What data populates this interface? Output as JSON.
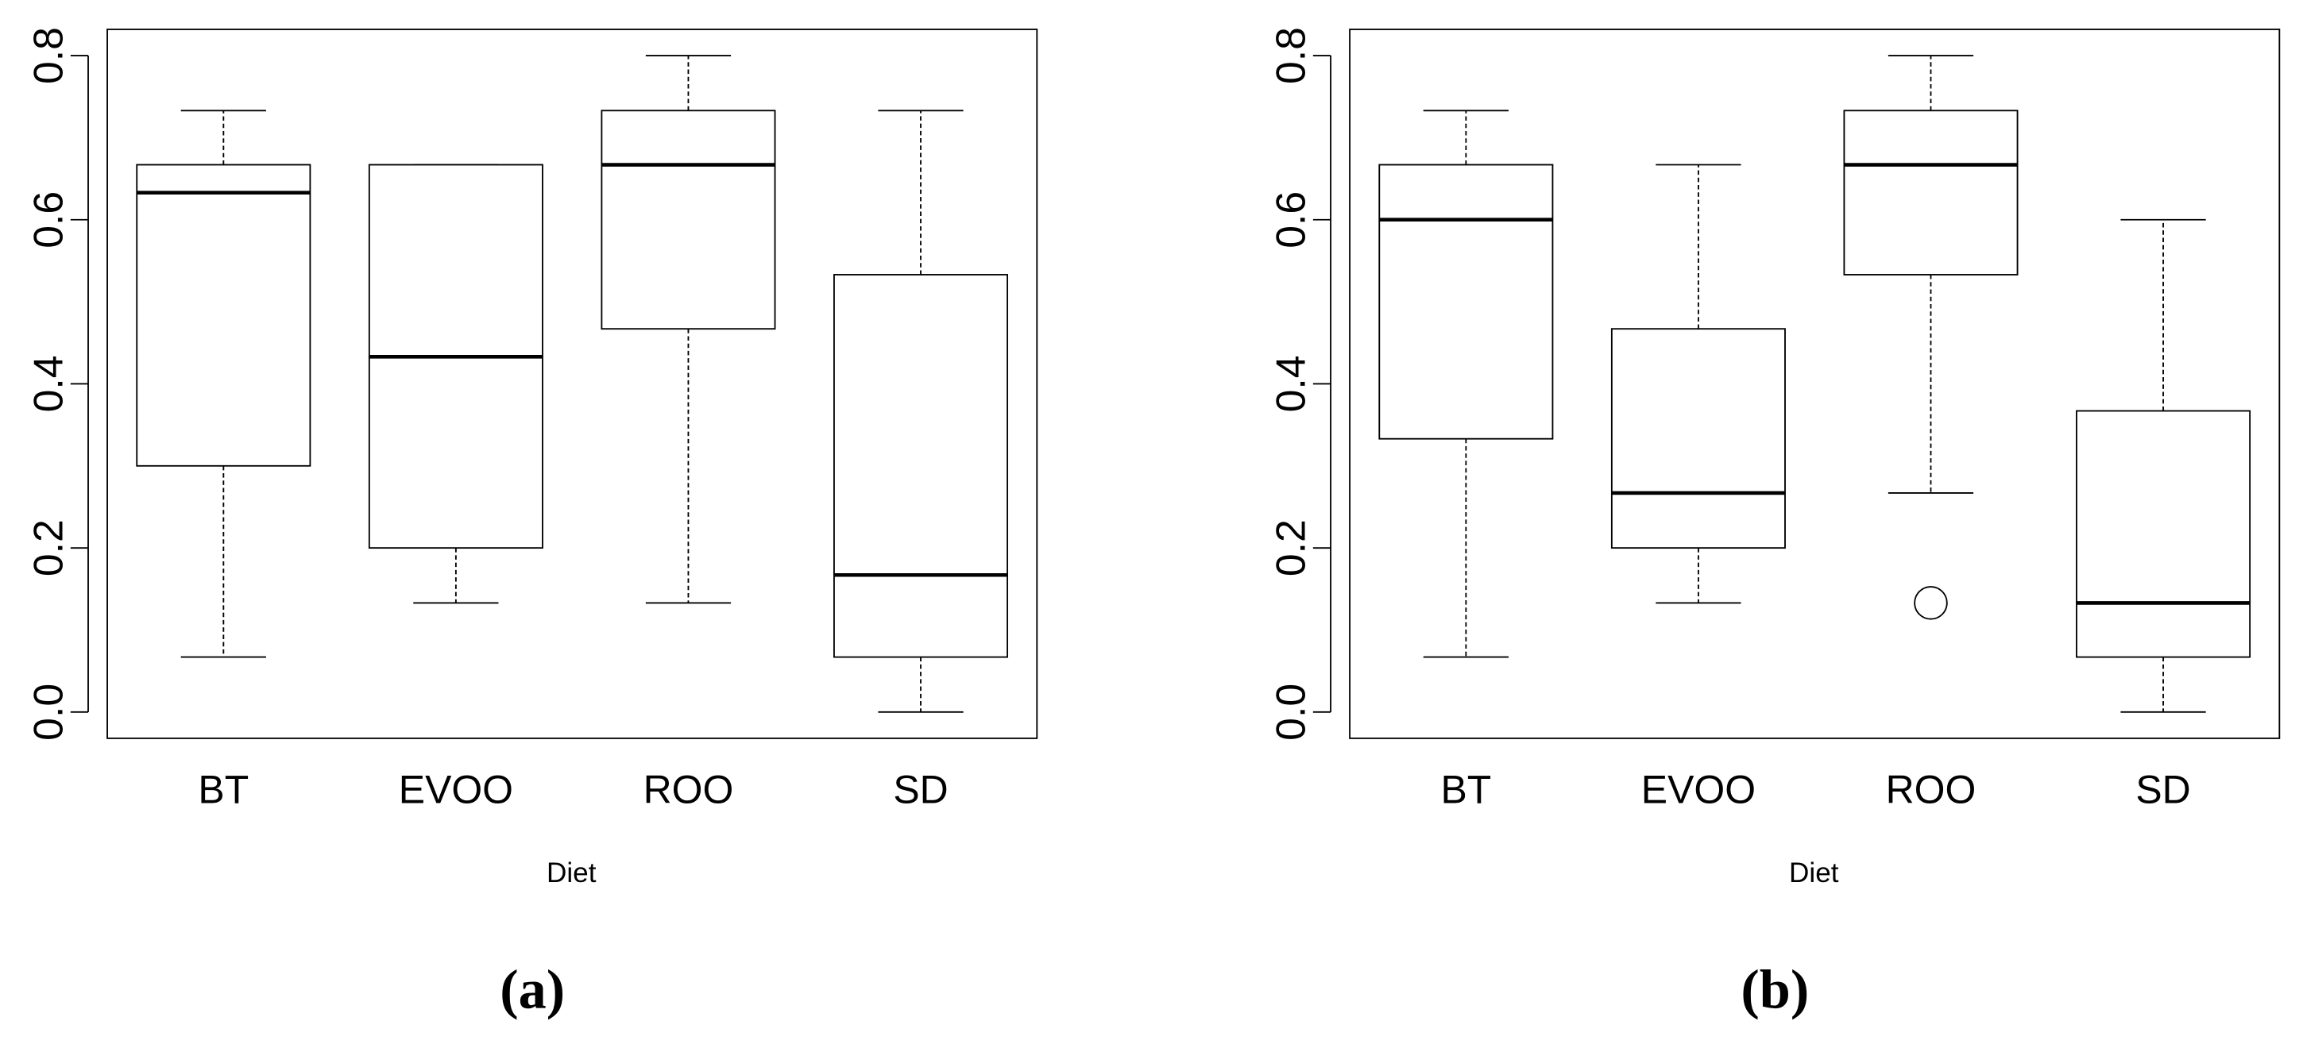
{
  "chart_data": [
    {
      "type": "box",
      "xlabel": "Diet",
      "panel_label": "(a)",
      "categories": [
        "BT",
        "EVOO",
        "ROO",
        "SD"
      ],
      "boxes": [
        {
          "low": 0.067,
          "q1": 0.3,
          "median": 0.633,
          "q3": 0.667,
          "high": 0.733
        },
        {
          "low": 0.133,
          "q1": 0.2,
          "median": 0.433,
          "q3": 0.667,
          "high": 0.667
        },
        {
          "low": 0.133,
          "q1": 0.467,
          "median": 0.667,
          "q3": 0.733,
          "high": 0.8
        },
        {
          "low": 0,
          "q1": 0.067,
          "median": 0.167,
          "q3": 0.533,
          "high": 0.733
        }
      ],
      "ylim": [
        -0.032,
        0.832
      ],
      "yticks": [
        {
          "value": 0,
          "label": "0.0"
        },
        0.2,
        0.4,
        0.6,
        0.8
      ]
    },
    {
      "type": "box",
      "xlabel": "Diet",
      "panel_label": "(b)",
      "categories": [
        "BT",
        "EVOO",
        "ROO",
        "SD"
      ],
      "boxes": [
        {
          "low": 0.067,
          "q1": 0.333,
          "median": 0.6,
          "q3": 0.667,
          "high": 0.733
        },
        {
          "low": 0.133,
          "q1": 0.2,
          "median": 0.267,
          "q3": 0.467,
          "high": 0.667
        },
        {
          "low": 0.267,
          "q1": 0.533,
          "median": 0.667,
          "q3": 0.733,
          "high": 0.8,
          "outliers": [
            0.133
          ]
        },
        {
          "low": 0,
          "q1": 0.067,
          "median": 0.133,
          "q3": 0.367,
          "high": 0.6
        }
      ],
      "ylim": [
        -0.032,
        0.832
      ],
      "yticks": [
        {
          "value": 0,
          "label": "0.0"
        },
        0.2,
        0.4,
        0.6,
        0.8
      ]
    }
  ]
}
